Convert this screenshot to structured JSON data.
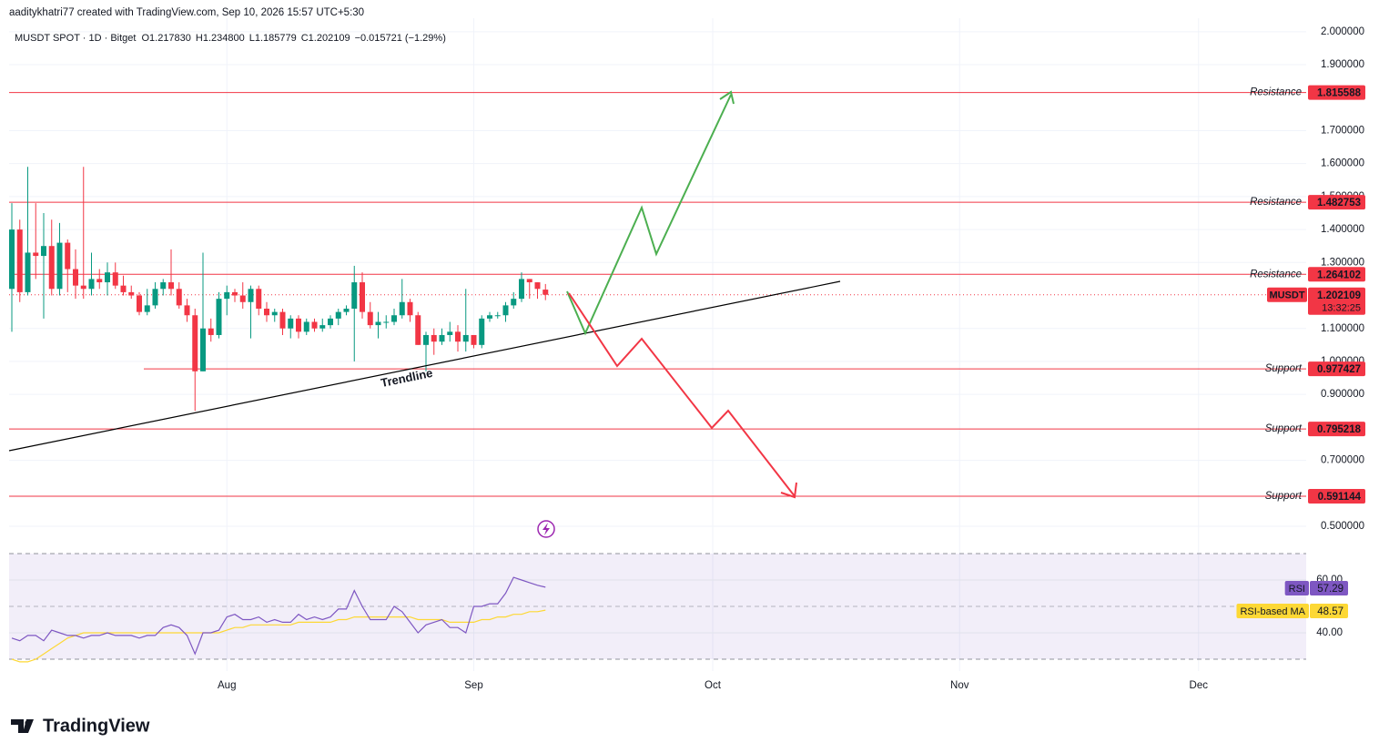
{
  "chart_data": {
    "type": "candlestick",
    "watermark": "aaditykhatri77 created with TradingView.com, Sep 10, 2026 15:57 UTC+5:30",
    "title": "MUSDT SPOT · 1D · Bitget",
    "legend_values": [
      "O1.217830",
      "H1.234800",
      "L1.185779",
      "C1.202109"
    ],
    "change": "−0.015721 (−1.29%)",
    "up_color": "#089981",
    "down_color": "#f23645",
    "open": [
      1.22,
      1.4,
      1.21,
      1.33,
      1.32,
      1.35,
      1.22,
      1.36,
      1.28,
      1.23,
      1.22,
      1.25,
      1.24,
      1.27,
      1.23,
      1.21,
      1.2,
      1.15,
      1.17,
      1.22,
      1.24,
      1.22,
      1.17,
      1.14,
      0.97,
      1.1,
      1.08,
      1.19,
      1.21,
      1.2,
      1.18,
      1.22,
      1.16,
      1.14,
      1.15,
      1.1,
      1.13,
      1.09,
      1.12,
      1.1,
      1.11,
      1.13,
      1.15,
      1.16,
      1.24,
      1.15,
      1.11,
      1.12,
      1.12,
      1.14,
      1.18,
      1.14,
      1.05,
      1.08,
      1.06,
      1.08,
      1.09,
      1.06,
      1.08,
      1.05,
      1.13,
      1.14,
      1.14,
      1.17,
      1.19,
      1.25,
      1.24,
      1.21783
    ],
    "high": [
      1.48,
      1.43,
      1.59,
      1.48,
      1.45,
      1.43,
      1.42,
      1.37,
      1.34,
      1.59,
      1.33,
      1.28,
      1.3,
      1.3,
      1.26,
      1.23,
      1.21,
      1.22,
      1.24,
      1.25,
      1.34,
      1.24,
      1.19,
      1.16,
      1.33,
      1.13,
      1.21,
      1.23,
      1.22,
      1.24,
      1.23,
      1.23,
      1.18,
      1.16,
      1.16,
      1.14,
      1.14,
      1.13,
      1.13,
      1.13,
      1.14,
      1.16,
      1.17,
      1.29,
      1.27,
      1.18,
      1.15,
      1.14,
      1.16,
      1.25,
      1.19,
      1.15,
      1.09,
      1.1,
      1.1,
      1.12,
      1.11,
      1.22,
      1.08,
      1.14,
      1.15,
      1.15,
      1.18,
      1.21,
      1.27,
      1.25,
      1.24,
      1.2348
    ],
    "low": [
      1.09,
      1.18,
      1.2,
      1.25,
      1.13,
      1.2,
      1.2,
      1.21,
      1.19,
      1.19,
      1.2,
      1.22,
      1.2,
      1.22,
      1.2,
      1.19,
      1.14,
      1.14,
      1.16,
      1.2,
      1.2,
      1.16,
      1.12,
      0.85,
      0.97,
      1.06,
      1.07,
      1.14,
      1.18,
      1.16,
      1.07,
      1.14,
      1.12,
      1.12,
      1.08,
      1.07,
      1.07,
      1.08,
      1.09,
      1.09,
      1.1,
      1.11,
      1.14,
      1.0,
      1.13,
      1.1,
      1.07,
      1.1,
      1.11,
      1.13,
      1.12,
      1.05,
      0.97,
      1.02,
      1.05,
      1.06,
      1.03,
      1.03,
      1.04,
      1.04,
      1.12,
      1.13,
      1.12,
      1.16,
      1.18,
      1.19,
      1.19,
      1.185779
    ],
    "close": [
      1.4,
      1.21,
      1.33,
      1.32,
      1.35,
      1.22,
      1.36,
      1.28,
      1.23,
      1.22,
      1.25,
      1.24,
      1.27,
      1.23,
      1.21,
      1.2,
      1.15,
      1.17,
      1.22,
      1.24,
      1.22,
      1.17,
      1.14,
      0.97,
      1.1,
      1.08,
      1.19,
      1.21,
      1.2,
      1.18,
      1.22,
      1.16,
      1.14,
      1.15,
      1.1,
      1.13,
      1.09,
      1.12,
      1.1,
      1.11,
      1.13,
      1.15,
      1.16,
      1.24,
      1.15,
      1.11,
      1.12,
      1.12,
      1.14,
      1.18,
      1.14,
      1.05,
      1.08,
      1.06,
      1.08,
      1.09,
      1.06,
      1.08,
      1.05,
      1.13,
      1.14,
      1.14,
      1.17,
      1.19,
      1.25,
      1.24,
      1.22,
      1.202109
    ],
    "ylim": [
      0.453,
      2.041
    ],
    "yticks": [
      {
        "value": 2.0,
        "label": "2.000000"
      },
      {
        "value": 1.9,
        "label": "1.900000"
      },
      {
        "value": 1.7,
        "label": "1.700000"
      },
      {
        "value": 1.6,
        "label": "1.600000"
      },
      {
        "value": 1.5,
        "label": "1.500000"
      },
      {
        "value": 1.4,
        "label": "1.400000"
      },
      {
        "value": 1.3,
        "label": "1.300000"
      },
      {
        "value": 1.1,
        "label": "1.100000"
      },
      {
        "value": 1.0,
        "label": "1.000000"
      },
      {
        "value": 0.9,
        "label": "0.900000"
      },
      {
        "value": 0.7,
        "label": "0.700000"
      },
      {
        "value": 0.5,
        "label": "0.500000"
      }
    ],
    "time_labels": [
      "Aug",
      "Sep",
      "Oct",
      "Nov",
      "Dec"
    ],
    "levels": [
      {
        "label": "Resistance",
        "value": 1.815588
      },
      {
        "label": "Resistance",
        "value": 1.482753
      },
      {
        "label": "Resistance",
        "value": 1.264102
      },
      {
        "label": "Support",
        "value": 0.977427
      },
      {
        "label": "Support",
        "value": 0.795218
      },
      {
        "label": "Support",
        "value": 0.591144
      }
    ],
    "symbol": "MUSDT",
    "countdown": "13:32:25",
    "annotation": "Trendline",
    "grid": true,
    "rsi": {
      "ylim": [
        26,
        74
      ],
      "yticks": [
        {
          "value": 60,
          "label": "60.00"
        },
        {
          "value": 40,
          "label": "40.00"
        }
      ],
      "bands": [
        70,
        50,
        30
      ],
      "series": [
        {
          "name": "RSI",
          "color": "#7e57c2",
          "values": [
            38,
            37,
            39,
            39,
            37,
            41,
            40,
            39,
            39,
            38,
            39,
            39,
            40,
            39,
            39,
            39,
            38,
            39,
            39,
            42,
            43,
            42,
            39,
            32,
            40,
            40,
            41,
            46,
            47,
            45,
            45,
            46,
            44,
            45,
            44,
            44,
            47,
            45,
            46,
            45,
            46,
            49,
            49,
            56,
            50,
            45,
            45,
            45,
            50,
            48,
            44,
            40,
            43,
            44,
            45,
            42,
            42,
            40,
            50,
            50,
            51,
            51,
            55,
            61,
            60,
            59,
            58,
            57.29
          ]
        },
        {
          "name": "RSI-based MA",
          "color": "#fdd835",
          "values": [
            30,
            29,
            29,
            30,
            32,
            34,
            36,
            38,
            39,
            40,
            40,
            40,
            40,
            40,
            40,
            40,
            40,
            40,
            40,
            40,
            40,
            40,
            40,
            40,
            40,
            40,
            40,
            41,
            42,
            42,
            43,
            43,
            43,
            43,
            43,
            43,
            44,
            44,
            44,
            44,
            44,
            45,
            45,
            46,
            46,
            46,
            46,
            46,
            46,
            46,
            46,
            45,
            45,
            45,
            45,
            44,
            44,
            44,
            44,
            45,
            45,
            46,
            46,
            47,
            47,
            48,
            48,
            48.57
          ]
        }
      ]
    },
    "brand": "TradingView"
  }
}
